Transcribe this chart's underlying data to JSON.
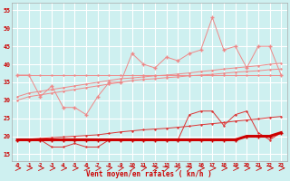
{
  "title": "",
  "xlabel": "Vent moyen/en rafales ( kn/h )",
  "bg_color": "#cef0f0",
  "grid_color": "#ffffff",
  "x_values": [
    0,
    1,
    2,
    3,
    4,
    5,
    6,
    7,
    8,
    9,
    10,
    11,
    12,
    13,
    14,
    15,
    16,
    17,
    18,
    19,
    20,
    21,
    22,
    23
  ],
  "ylim": [
    13.0,
    57.0
  ],
  "yticks": [
    15,
    20,
    25,
    30,
    35,
    40,
    45,
    50,
    55
  ],
  "line_flat37": [
    37,
    37,
    37,
    37,
    37,
    37,
    37,
    37,
    37,
    37,
    37,
    37,
    37,
    37,
    37,
    37,
    37,
    37,
    37,
    37,
    37,
    37,
    37,
    37
  ],
  "line_trend_lo": [
    30,
    31,
    31.5,
    32,
    32.5,
    33,
    33.5,
    34,
    34.5,
    35,
    35.5,
    35.8,
    36,
    36.3,
    36.5,
    36.8,
    37,
    37.2,
    37.5,
    37.8,
    38,
    38.2,
    38.5,
    38.7
  ],
  "line_trend_hi": [
    31,
    32,
    32.5,
    33,
    33.5,
    34,
    34.5,
    35,
    35.5,
    36,
    36.2,
    36.5,
    36.8,
    37,
    37.3,
    37.6,
    38,
    38.3,
    38.7,
    39,
    39.3,
    39.6,
    40,
    40.3
  ],
  "line_jagged_pink": [
    37,
    37,
    31,
    34,
    28,
    28,
    26,
    31,
    35,
    35,
    43,
    40,
    39,
    42,
    41,
    43,
    44,
    53,
    44,
    45,
    39,
    45,
    45,
    37
  ],
  "line_jagged_dkred": [
    19,
    19,
    19,
    17,
    17,
    18,
    17,
    17,
    19,
    19,
    19,
    19,
    19,
    19,
    19,
    26,
    27,
    27,
    23,
    26,
    27,
    21,
    19,
    21
  ],
  "line_flat_thick": [
    19,
    19,
    19,
    19,
    19,
    19,
    19,
    19,
    19,
    19,
    19,
    19,
    19,
    19,
    19,
    19,
    19,
    19,
    19,
    19,
    20,
    20,
    20,
    21
  ],
  "line_trend_red": [
    19,
    19.2,
    19.4,
    19.6,
    19.8,
    20,
    20.2,
    20.4,
    20.8,
    21.2,
    21.5,
    21.8,
    22,
    22.2,
    22.5,
    22.8,
    23.2,
    23.5,
    23.8,
    24.2,
    24.5,
    24.8,
    25.2,
    25.5
  ],
  "arrow_angles_deg": [
    0,
    0,
    0,
    0,
    0,
    0,
    0,
    15,
    30,
    30,
    30,
    30,
    30,
    45,
    45,
    45,
    0,
    0,
    0,
    0,
    0,
    0,
    0,
    0
  ],
  "light_salmon": "#f08888",
  "medium_red": "#dd3333",
  "dark_red": "#cc0000"
}
